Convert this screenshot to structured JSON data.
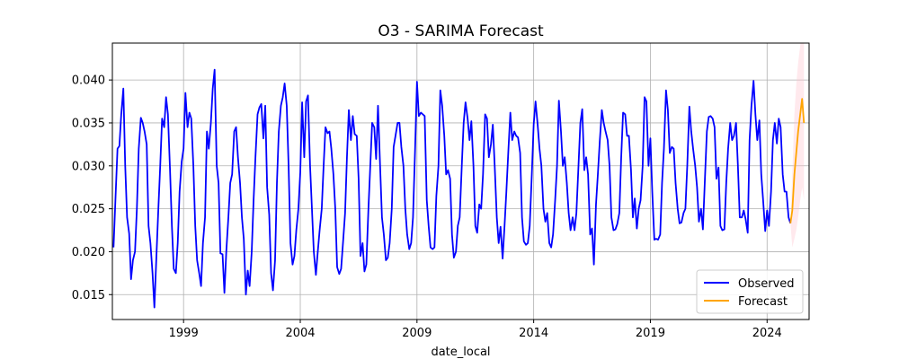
{
  "chart_data": {
    "type": "line",
    "title": "O3 - SARIMA Forecast",
    "xlabel": "date_local",
    "ylabel": "",
    "xlim": [
      1995.95,
      2025.8
    ],
    "ylim": [
      0.0121,
      0.0443
    ],
    "x_ticks": [
      {
        "value": 1999,
        "label": "1999"
      },
      {
        "value": 2004,
        "label": "2004"
      },
      {
        "value": 2009,
        "label": "2009"
      },
      {
        "value": 2014,
        "label": "2014"
      },
      {
        "value": 2019,
        "label": "2019"
      },
      {
        "value": 2024,
        "label": "2024"
      }
    ],
    "y_ticks": [
      {
        "value": 0.015,
        "label": "0.015"
      },
      {
        "value": 0.02,
        "label": "0.020"
      },
      {
        "value": 0.025,
        "label": "0.025"
      },
      {
        "value": 0.03,
        "label": "0.030"
      },
      {
        "value": 0.035,
        "label": "0.035"
      },
      {
        "value": 0.04,
        "label": "0.040"
      }
    ],
    "grid": true,
    "legend_position": "lower-right",
    "series": [
      {
        "name": "Observed",
        "color": "#0000ff",
        "x": [
          1996.0,
          1996.08,
          1996.17,
          1996.25,
          1996.33,
          1996.42,
          1996.5,
          1996.58,
          1996.67,
          1996.75,
          1996.83,
          1996.92,
          1997.0,
          1997.08,
          1997.17,
          1997.25,
          1997.33,
          1997.42,
          1997.5,
          1997.58,
          1997.67,
          1997.75,
          1997.83,
          1997.92,
          1998.0,
          1998.08,
          1998.17,
          1998.25,
          1998.33,
          1998.42,
          1998.5,
          1998.58,
          1998.67,
          1998.75,
          1998.83,
          1998.92,
          1999.0,
          1999.08,
          1999.17,
          1999.25,
          1999.33,
          1999.42,
          1999.5,
          1999.58,
          1999.67,
          1999.75,
          1999.83,
          1999.92,
          2000.0,
          2000.08,
          2000.17,
          2000.25,
          2000.33,
          2000.42,
          2000.5,
          2000.58,
          2000.67,
          2000.75,
          2000.83,
          2000.92,
          2001.0,
          2001.08,
          2001.17,
          2001.25,
          2001.33,
          2001.42,
          2001.5,
          2001.58,
          2001.67,
          2001.75,
          2001.83,
          2001.92,
          2002.0,
          2002.08,
          2002.17,
          2002.25,
          2002.33,
          2002.42,
          2002.5,
          2002.58,
          2002.67,
          2002.75,
          2002.83,
          2002.92,
          2003.0,
          2003.08,
          2003.17,
          2003.25,
          2003.33,
          2003.42,
          2003.5,
          2003.58,
          2003.67,
          2003.75,
          2003.83,
          2003.92,
          2004.0,
          2004.08,
          2004.17,
          2004.25,
          2004.33,
          2004.42,
          2004.5,
          2004.58,
          2004.67,
          2004.75,
          2004.83,
          2004.92,
          2005.0,
          2005.08,
          2005.17,
          2005.25,
          2005.33,
          2005.42,
          2005.5,
          2005.58,
          2005.67,
          2005.75,
          2005.83,
          2005.92,
          2006.0,
          2006.08,
          2006.17,
          2006.25,
          2006.33,
          2006.42,
          2006.5,
          2006.58,
          2006.67,
          2006.75,
          2006.83,
          2006.92,
          2007.0,
          2007.08,
          2007.17,
          2007.25,
          2007.33,
          2007.42,
          2007.5,
          2007.58,
          2007.67,
          2007.75,
          2007.83,
          2007.92,
          2008.0,
          2008.08,
          2008.17,
          2008.25,
          2008.33,
          2008.42,
          2008.5,
          2008.58,
          2008.67,
          2008.75,
          2008.83,
          2008.92,
          2009.0,
          2009.08,
          2009.17,
          2009.25,
          2009.33,
          2009.42,
          2009.5,
          2009.58,
          2009.67,
          2009.75,
          2009.83,
          2009.92,
          2010.0,
          2010.08,
          2010.17,
          2010.25,
          2010.33,
          2010.42,
          2010.5,
          2010.58,
          2010.67,
          2010.75,
          2010.83,
          2010.92,
          2011.0,
          2011.08,
          2011.17,
          2011.25,
          2011.33,
          2011.42,
          2011.5,
          2011.58,
          2011.67,
          2011.75,
          2011.83,
          2011.92,
          2012.0,
          2012.08,
          2012.17,
          2012.25,
          2012.33,
          2012.42,
          2012.5,
          2012.58,
          2012.67,
          2012.75,
          2012.83,
          2012.92,
          2013.0,
          2013.08,
          2013.17,
          2013.25,
          2013.33,
          2013.42,
          2013.5,
          2013.58,
          2013.67,
          2013.75,
          2013.83,
          2013.92,
          2014.0,
          2014.08,
          2014.17,
          2014.25,
          2014.33,
          2014.42,
          2014.5,
          2014.58,
          2014.67,
          2014.75,
          2014.83,
          2014.92,
          2015.0,
          2015.08,
          2015.17,
          2015.25,
          2015.33,
          2015.42,
          2015.5,
          2015.58,
          2015.67,
          2015.75,
          2015.83,
          2015.92,
          2016.0,
          2016.08,
          2016.17,
          2016.25,
          2016.33,
          2016.42,
          2016.5,
          2016.58,
          2016.67,
          2016.75,
          2016.83,
          2016.92,
          2017.0,
          2017.08,
          2017.17,
          2017.25,
          2017.33,
          2017.42,
          2017.5,
          2017.58,
          2017.67,
          2017.75,
          2017.83,
          2017.92,
          2018.0,
          2018.08,
          2018.17,
          2018.25,
          2018.33,
          2018.42,
          2018.5,
          2018.58,
          2018.67,
          2018.75,
          2018.83,
          2018.92,
          2019.0,
          2019.08,
          2019.17,
          2019.25,
          2019.33,
          2019.42,
          2019.5,
          2019.58,
          2019.67,
          2019.75,
          2019.83,
          2019.92,
          2020.0,
          2020.08,
          2020.17,
          2020.25,
          2020.33,
          2020.42,
          2020.5,
          2020.58,
          2020.67,
          2020.75,
          2020.83,
          2020.92,
          2021.0,
          2021.08,
          2021.17,
          2021.25,
          2021.33,
          2021.42,
          2021.5,
          2021.58,
          2021.67,
          2021.75,
          2021.83,
          2021.92,
          2022.0,
          2022.08,
          2022.17,
          2022.25,
          2022.33,
          2022.42,
          2022.5,
          2022.58,
          2022.67,
          2022.75,
          2022.83,
          2022.92,
          2023.0,
          2023.08,
          2023.17,
          2023.25,
          2023.33,
          2023.42,
          2023.5,
          2023.58,
          2023.67,
          2023.75,
          2023.83,
          2023.92,
          2024.0,
          2024.08,
          2024.17,
          2024.25,
          2024.33,
          2024.42,
          2024.5,
          2024.58,
          2024.67,
          2024.75,
          2024.83,
          2024.92,
          2025.0
        ],
        "values": [
          0.0205,
          0.026,
          0.032,
          0.0323,
          0.036,
          0.039,
          0.03,
          0.024,
          0.0221,
          0.0168,
          0.019,
          0.02,
          0.025,
          0.032,
          0.0356,
          0.035,
          0.034,
          0.0325,
          0.023,
          0.021,
          0.0175,
          0.0135,
          0.019,
          0.025,
          0.03,
          0.0355,
          0.0345,
          0.038,
          0.036,
          0.0295,
          0.023,
          0.018,
          0.0175,
          0.021,
          0.027,
          0.0305,
          0.032,
          0.0385,
          0.0345,
          0.0362,
          0.0355,
          0.03,
          0.023,
          0.019,
          0.0175,
          0.016,
          0.021,
          0.024,
          0.034,
          0.032,
          0.035,
          0.039,
          0.0412,
          0.03,
          0.028,
          0.0198,
          0.0197,
          0.0152,
          0.02,
          0.024,
          0.028,
          0.029,
          0.034,
          0.0345,
          0.031,
          0.028,
          0.024,
          0.0215,
          0.015,
          0.0178,
          0.016,
          0.02,
          0.026,
          0.031,
          0.036,
          0.0368,
          0.0372,
          0.0332,
          0.037,
          0.0275,
          0.0243,
          0.0175,
          0.0155,
          0.019,
          0.028,
          0.034,
          0.037,
          0.038,
          0.0396,
          0.037,
          0.03,
          0.021,
          0.0185,
          0.0195,
          0.0225,
          0.025,
          0.0292,
          0.0374,
          0.031,
          0.0375,
          0.0382,
          0.03,
          0.025,
          0.02,
          0.0173,
          0.02,
          0.0225,
          0.025,
          0.03,
          0.0345,
          0.0338,
          0.034,
          0.032,
          0.029,
          0.025,
          0.0182,
          0.0174,
          0.018,
          0.021,
          0.0245,
          0.031,
          0.0365,
          0.033,
          0.0358,
          0.0337,
          0.0335,
          0.0285,
          0.0195,
          0.021,
          0.0177,
          0.0185,
          0.025,
          0.03,
          0.035,
          0.0345,
          0.0308,
          0.037,
          0.03,
          0.024,
          0.022,
          0.019,
          0.0193,
          0.021,
          0.025,
          0.0322,
          0.0335,
          0.035,
          0.035,
          0.0322,
          0.03,
          0.025,
          0.022,
          0.0203,
          0.021,
          0.024,
          0.032,
          0.0398,
          0.0358,
          0.0362,
          0.036,
          0.0358,
          0.026,
          0.023,
          0.0205,
          0.0203,
          0.0205,
          0.0265,
          0.03,
          0.0388,
          0.037,
          0.0335,
          0.029,
          0.0295,
          0.0285,
          0.022,
          0.0193,
          0.02,
          0.023,
          0.024,
          0.03,
          0.035,
          0.0374,
          0.0355,
          0.033,
          0.0352,
          0.03,
          0.023,
          0.0222,
          0.0255,
          0.025,
          0.029,
          0.036,
          0.0355,
          0.031,
          0.0325,
          0.0348,
          0.03,
          0.024,
          0.021,
          0.0229,
          0.0192,
          0.0229,
          0.027,
          0.032,
          0.0362,
          0.033,
          0.034,
          0.0335,
          0.0333,
          0.0315,
          0.024,
          0.0212,
          0.0208,
          0.021,
          0.023,
          0.029,
          0.0348,
          0.0375,
          0.0348,
          0.032,
          0.03,
          0.025,
          0.0235,
          0.0245,
          0.021,
          0.0205,
          0.022,
          0.026,
          0.03,
          0.0376,
          0.034,
          0.03,
          0.031,
          0.028,
          0.0245,
          0.0225,
          0.024,
          0.0225,
          0.0245,
          0.03,
          0.035,
          0.0366,
          0.0295,
          0.031,
          0.029,
          0.022,
          0.0227,
          0.0185,
          0.0255,
          0.029,
          0.0328,
          0.0365,
          0.035,
          0.034,
          0.033,
          0.03,
          0.024,
          0.0225,
          0.0226,
          0.0232,
          0.0245,
          0.031,
          0.0362,
          0.036,
          0.0335,
          0.0335,
          0.0295,
          0.024,
          0.0262,
          0.0227,
          0.025,
          0.026,
          0.03,
          0.038,
          0.0375,
          0.03,
          0.0332,
          0.027,
          0.0214,
          0.0215,
          0.0214,
          0.022,
          0.028,
          0.032,
          0.0388,
          0.0365,
          0.0315,
          0.0322,
          0.032,
          0.028,
          0.025,
          0.0233,
          0.0234,
          0.0245,
          0.025,
          0.03,
          0.0369,
          0.034,
          0.032,
          0.03,
          0.0275,
          0.0235,
          0.025,
          0.0226,
          0.028,
          0.034,
          0.0357,
          0.0358,
          0.0355,
          0.0345,
          0.0285,
          0.0298,
          0.023,
          0.0225,
          0.0226,
          0.028,
          0.032,
          0.035,
          0.033,
          0.0335,
          0.035,
          0.03,
          0.024,
          0.024,
          0.0248,
          0.0238,
          0.0222,
          0.033,
          0.037,
          0.0399,
          0.036,
          0.033,
          0.0353,
          0.029,
          0.026,
          0.0224,
          0.0248,
          0.023,
          0.027,
          0.033,
          0.035,
          0.0326,
          0.0355,
          0.0345,
          0.029,
          0.027,
          0.027,
          0.024,
          0.0233
        ]
      },
      {
        "name": "Forecast",
        "color": "#ffa500",
        "x": [
          2025.0,
          2025.08,
          2025.17,
          2025.25,
          2025.33,
          2025.42,
          2025.5,
          2025.58
        ],
        "values": [
          0.0233,
          0.0248,
          0.029,
          0.0315,
          0.034,
          0.036,
          0.0378,
          0.035
        ]
      }
    ],
    "confidence_band": {
      "color": "#ffc0cb",
      "x": [
        2025.0,
        2025.08,
        2025.17,
        2025.25,
        2025.33,
        2025.42,
        2025.5,
        2025.58
      ],
      "lower": [
        0.0233,
        0.0205,
        0.0215,
        0.0225,
        0.024,
        0.026,
        0.0275,
        0.026
      ],
      "upper": [
        0.0233,
        0.029,
        0.036,
        0.0395,
        0.042,
        0.044,
        0.046,
        0.045
      ]
    }
  }
}
